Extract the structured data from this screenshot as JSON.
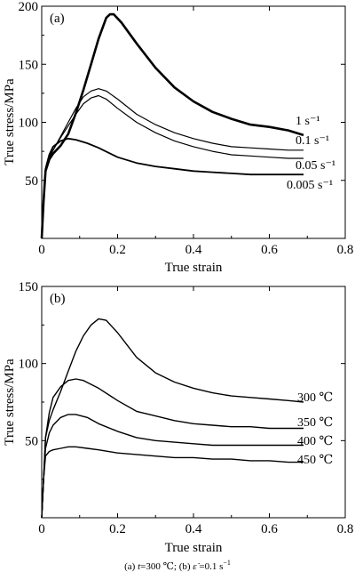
{
  "chart_data": [
    {
      "type": "line",
      "panel_label": "(a)",
      "xlabel": "True strain",
      "ylabel": "True stress/MPa",
      "xlim": [
        0,
        0.8
      ],
      "ylim": [
        0,
        200
      ],
      "xticks": [
        "0",
        "0.2",
        "0.4",
        "0.6",
        "0.8"
      ],
      "yticks": [
        "50",
        "100",
        "150",
        "200"
      ],
      "grid": false,
      "series": [
        {
          "name": "1 s⁻¹",
          "points": [
            [
              0,
              0
            ],
            [
              0.005,
              32
            ],
            [
              0.01,
              58
            ],
            [
              0.02,
              68
            ],
            [
              0.03,
              73
            ],
            [
              0.05,
              80
            ],
            [
              0.07,
              90
            ],
            [
              0.09,
              108
            ],
            [
              0.11,
              128
            ],
            [
              0.13,
              150
            ],
            [
              0.15,
              172
            ],
            [
              0.17,
              190
            ],
            [
              0.18,
              193
            ],
            [
              0.19,
              193
            ],
            [
              0.21,
              186
            ],
            [
              0.25,
              168
            ],
            [
              0.3,
              147
            ],
            [
              0.35,
              130
            ],
            [
              0.4,
              118
            ],
            [
              0.45,
              109
            ],
            [
              0.5,
              103
            ],
            [
              0.55,
              98
            ],
            [
              0.6,
              96
            ],
            [
              0.65,
              93
            ],
            [
              0.69,
              89
            ]
          ]
        },
        {
          "name": "0.1 s⁻¹",
          "points": [
            [
              0,
              0
            ],
            [
              0.005,
              32
            ],
            [
              0.01,
              58
            ],
            [
              0.02,
              70
            ],
            [
              0.03,
              76
            ],
            [
              0.05,
              88
            ],
            [
              0.07,
              100
            ],
            [
              0.09,
              112
            ],
            [
              0.11,
              122
            ],
            [
              0.13,
              127
            ],
            [
              0.15,
              129
            ],
            [
              0.17,
              127
            ],
            [
              0.2,
              120
            ],
            [
              0.25,
              107
            ],
            [
              0.3,
              98
            ],
            [
              0.35,
              91
            ],
            [
              0.4,
              86
            ],
            [
              0.45,
              82
            ],
            [
              0.5,
              79
            ],
            [
              0.55,
              78
            ],
            [
              0.6,
              77
            ],
            [
              0.65,
              76
            ],
            [
              0.69,
              76
            ]
          ]
        },
        {
          "name": "0.05 s⁻¹",
          "points": [
            [
              0,
              0
            ],
            [
              0.005,
              32
            ],
            [
              0.01,
              58
            ],
            [
              0.02,
              70
            ],
            [
              0.03,
              76
            ],
            [
              0.05,
              87
            ],
            [
              0.07,
              97
            ],
            [
              0.09,
              107
            ],
            [
              0.11,
              116
            ],
            [
              0.13,
              121
            ],
            [
              0.15,
              123
            ],
            [
              0.17,
              120
            ],
            [
              0.2,
              112
            ],
            [
              0.25,
              100
            ],
            [
              0.3,
              91
            ],
            [
              0.35,
              84
            ],
            [
              0.4,
              79
            ],
            [
              0.45,
              75
            ],
            [
              0.5,
              72
            ],
            [
              0.55,
              71
            ],
            [
              0.6,
              70
            ],
            [
              0.65,
              69
            ],
            [
              0.69,
              69
            ]
          ]
        },
        {
          "name": "0.005 s⁻¹",
          "points": [
            [
              0,
              0
            ],
            [
              0.005,
              32
            ],
            [
              0.01,
              60
            ],
            [
              0.02,
              72
            ],
            [
              0.03,
              79
            ],
            [
              0.05,
              84
            ],
            [
              0.07,
              86
            ],
            [
              0.09,
              85
            ],
            [
              0.12,
              82
            ],
            [
              0.15,
              78
            ],
            [
              0.2,
              70
            ],
            [
              0.25,
              65
            ],
            [
              0.3,
              62
            ],
            [
              0.35,
              60
            ],
            [
              0.4,
              58
            ],
            [
              0.45,
              57
            ],
            [
              0.5,
              56
            ],
            [
              0.55,
              55
            ],
            [
              0.6,
              55
            ],
            [
              0.65,
              55
            ],
            [
              0.69,
              55
            ]
          ]
        }
      ]
    },
    {
      "type": "line",
      "panel_label": "(b)",
      "xlabel": "True strain",
      "ylabel": "True stress/MPa",
      "xlim": [
        0,
        0.8
      ],
      "ylim": [
        0,
        150
      ],
      "xticks": [
        "0",
        "0.2",
        "0.4",
        "0.6",
        "0.8"
      ],
      "yticks": [
        "50",
        "100",
        "150"
      ],
      "grid": false,
      "series": [
        {
          "name": "300 ℃",
          "points": [
            [
              0,
              0
            ],
            [
              0.005,
              25
            ],
            [
              0.01,
              52
            ],
            [
              0.02,
              63
            ],
            [
              0.03,
              70
            ],
            [
              0.05,
              82
            ],
            [
              0.07,
              95
            ],
            [
              0.09,
              108
            ],
            [
              0.11,
              118
            ],
            [
              0.13,
              125
            ],
            [
              0.15,
              129
            ],
            [
              0.17,
              128
            ],
            [
              0.2,
              120
            ],
            [
              0.25,
              104
            ],
            [
              0.3,
              94
            ],
            [
              0.35,
              88
            ],
            [
              0.4,
              84
            ],
            [
              0.45,
              81
            ],
            [
              0.5,
              79
            ],
            [
              0.55,
              78
            ],
            [
              0.6,
              77
            ],
            [
              0.65,
              76
            ],
            [
              0.69,
              75
            ]
          ]
        },
        {
          "name": "350 ℃",
          "points": [
            [
              0,
              0
            ],
            [
              0.005,
              25
            ],
            [
              0.01,
              52
            ],
            [
              0.02,
              68
            ],
            [
              0.03,
              78
            ],
            [
              0.05,
              85
            ],
            [
              0.07,
              89
            ],
            [
              0.09,
              90
            ],
            [
              0.11,
              89
            ],
            [
              0.15,
              84
            ],
            [
              0.2,
              76
            ],
            [
              0.25,
              69
            ],
            [
              0.3,
              66
            ],
            [
              0.35,
              63
            ],
            [
              0.4,
              61
            ],
            [
              0.45,
              60
            ],
            [
              0.5,
              59
            ],
            [
              0.55,
              59
            ],
            [
              0.6,
              58
            ],
            [
              0.65,
              58
            ],
            [
              0.69,
              58
            ]
          ]
        },
        {
          "name": "400 ℃",
          "points": [
            [
              0,
              0
            ],
            [
              0.005,
              25
            ],
            [
              0.01,
              45
            ],
            [
              0.02,
              55
            ],
            [
              0.03,
              60
            ],
            [
              0.05,
              65
            ],
            [
              0.07,
              67
            ],
            [
              0.09,
              67
            ],
            [
              0.12,
              65
            ],
            [
              0.15,
              61
            ],
            [
              0.2,
              56
            ],
            [
              0.25,
              52
            ],
            [
              0.3,
              50
            ],
            [
              0.35,
              49
            ],
            [
              0.4,
              48
            ],
            [
              0.45,
              47
            ],
            [
              0.5,
              47
            ],
            [
              0.55,
              47
            ],
            [
              0.6,
              47
            ],
            [
              0.65,
              47
            ],
            [
              0.69,
              47
            ]
          ]
        },
        {
          "name": "450 ℃",
          "points": [
            [
              0,
              0
            ],
            [
              0.005,
              25
            ],
            [
              0.01,
              40
            ],
            [
              0.02,
              43
            ],
            [
              0.03,
              44
            ],
            [
              0.05,
              45
            ],
            [
              0.07,
              46
            ],
            [
              0.09,
              46
            ],
            [
              0.12,
              45
            ],
            [
              0.15,
              44
            ],
            [
              0.2,
              42
            ],
            [
              0.25,
              41
            ],
            [
              0.3,
              40
            ],
            [
              0.35,
              39
            ],
            [
              0.4,
              39
            ],
            [
              0.45,
              38
            ],
            [
              0.5,
              38
            ],
            [
              0.55,
              37
            ],
            [
              0.6,
              37
            ],
            [
              0.65,
              36
            ],
            [
              0.69,
              36
            ]
          ]
        }
      ]
    }
  ],
  "caption": {
    "a_label": "(a) ",
    "a_var": "t",
    "a_value": "=300 ℃; (b)  ",
    "b_var": "ε̇",
    "b_value": " =0.1 s",
    "b_exp": "−1"
  }
}
